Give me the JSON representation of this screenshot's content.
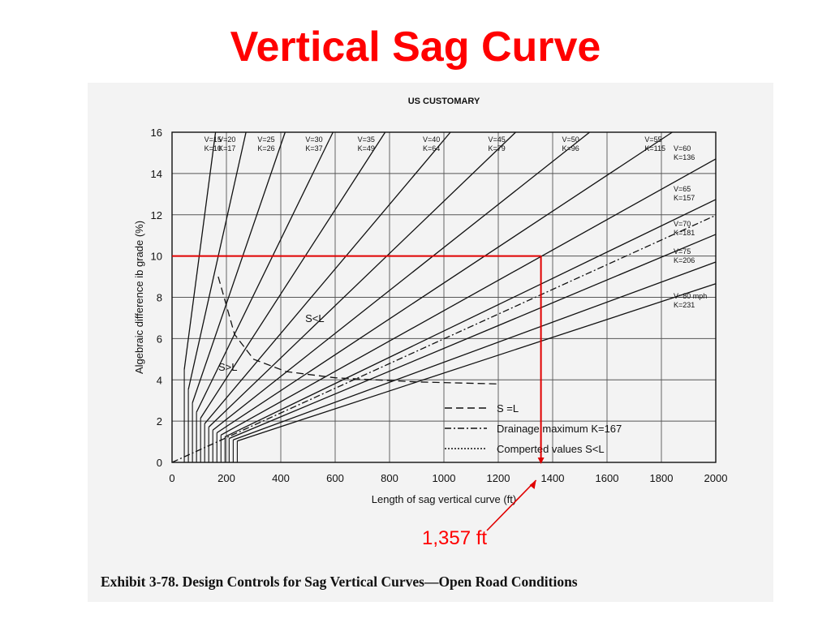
{
  "slide_title": "Vertical Sag Curve",
  "figure_caption": "Exhibit 3-78.  Design Controls for Sag Vertical Curves—Open Road Conditions",
  "answer_label": "1,357 ft",
  "colors": {
    "title": "#ff0000",
    "guide": "#e00000",
    "lines": "#111111",
    "scan_bg": "#f3f3f3"
  },
  "chart_data": {
    "type": "line",
    "title": "US CUSTOMARY",
    "xlabel": "Length of sag vertical curve (ft)",
    "ylabel": "Algebraic difference ib grade (%)",
    "xlim": [
      0,
      2000
    ],
    "ylim": [
      0,
      16
    ],
    "x_ticks": [
      0,
      200,
      400,
      600,
      800,
      1000,
      1200,
      1400,
      1600,
      1800,
      2000
    ],
    "x_tick_labels": [
      "0",
      "200",
      "400",
      "600",
      "800",
      "1000",
      "1200",
      "1400",
      "1600",
      "1800",
      "2000"
    ],
    "y_ticks": [
      0,
      2,
      4,
      6,
      8,
      10,
      12,
      14,
      16
    ],
    "y_tick_labels": [
      "0",
      "2",
      "4",
      "6",
      "8",
      "10",
      "12",
      "14",
      "16"
    ],
    "grid": true,
    "series": [
      {
        "name": "V=15 K=10",
        "k": 10,
        "min_length": 45,
        "label": [
          "V=15",
          "K=10"
        ]
      },
      {
        "name": "V=20 K=17",
        "k": 17,
        "min_length": 60,
        "label": [
          "V=20",
          "K=17"
        ]
      },
      {
        "name": "V=25 K=26",
        "k": 26,
        "min_length": 75,
        "label": [
          "V=25",
          "K=26"
        ]
      },
      {
        "name": "V=30 K=37",
        "k": 37,
        "min_length": 90,
        "label": [
          "V=30",
          "K=37"
        ]
      },
      {
        "name": "V=35 K=49",
        "k": 49,
        "min_length": 105,
        "label": [
          "V=35",
          "K=49"
        ]
      },
      {
        "name": "V=40 K=64",
        "k": 64,
        "min_length": 120,
        "label": [
          "V=40",
          "K=64"
        ]
      },
      {
        "name": "V=45 K=79",
        "k": 79,
        "min_length": 135,
        "label": [
          "V=45",
          "K=79"
        ]
      },
      {
        "name": "V=50 K=96",
        "k": 96,
        "min_length": 150,
        "label": [
          "V=50",
          "K=96"
        ]
      },
      {
        "name": "V=55 K=115",
        "k": 115,
        "min_length": 165,
        "label": [
          "V=55",
          "K=115"
        ]
      },
      {
        "name": "V=60 K=136",
        "k": 136,
        "min_length": 180,
        "label": [
          "V=60",
          "K=136"
        ]
      },
      {
        "name": "V=65 K=157",
        "k": 157,
        "min_length": 195,
        "label": [
          "V=65",
          "K=157"
        ]
      },
      {
        "name": "V=70 K=181",
        "k": 181,
        "min_length": 210,
        "label": [
          "V=70",
          "K=181"
        ]
      },
      {
        "name": "V=75 K=206",
        "k": 206,
        "min_length": 225,
        "label": [
          "V=75",
          "K=206"
        ]
      },
      {
        "name": "V=80 mph K=231",
        "k": 231,
        "min_length": 240,
        "label": [
          "V=80 mph",
          "K=231"
        ]
      }
    ],
    "drainage_maximum": {
      "k": 167,
      "style": "dash-dot"
    },
    "boundary_curve": {
      "label": "S = L",
      "points": [
        [
          170,
          9.0
        ],
        [
          230,
          6.2
        ],
        [
          300,
          5.0
        ],
        [
          420,
          4.4
        ],
        [
          600,
          4.1
        ],
        [
          900,
          3.9
        ],
        [
          1200,
          3.8
        ]
      ]
    },
    "region_labels": {
      "s_less_l": "S<L",
      "s_greater_l": "S>L"
    },
    "legend": {
      "placement": "bottom-right",
      "items": [
        "S =L",
        "Drainage maximum K=167",
        "Comperted values S<L"
      ]
    },
    "annotation": {
      "x": 1357,
      "y": 10,
      "text": "1,357 ft"
    }
  }
}
